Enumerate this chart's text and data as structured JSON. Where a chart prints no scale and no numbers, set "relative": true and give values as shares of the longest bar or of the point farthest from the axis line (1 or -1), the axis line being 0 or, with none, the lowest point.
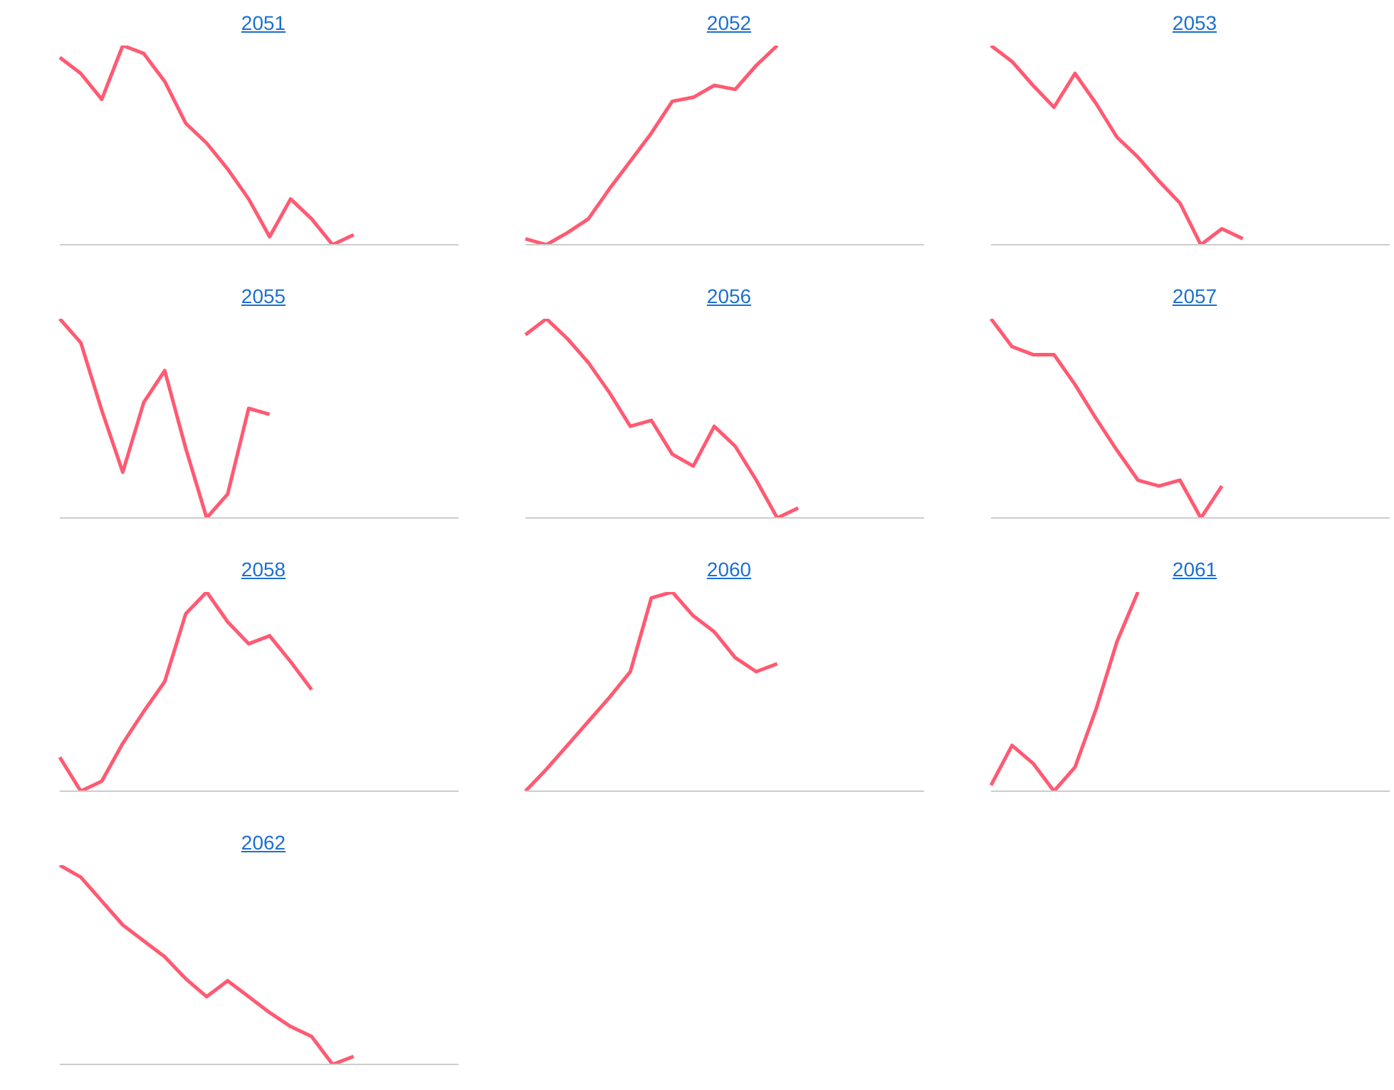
{
  "chart_data": [
    {
      "type": "line",
      "title": "2051",
      "relative": true,
      "color": "#ff5a72",
      "categories": [
        null,
        null,
        null,
        null,
        null,
        null,
        null,
        null,
        null,
        null,
        null,
        null,
        null,
        null,
        null,
        null,
        null,
        null,
        null,
        null
      ],
      "values": [
        0.94,
        0.86,
        0.73,
        1.0,
        0.96,
        0.82,
        0.61,
        0.51,
        0.38,
        0.23,
        0.04,
        0.23,
        0.13,
        0,
        0.05,
        null,
        null,
        null,
        null,
        null
      ]
    },
    {
      "type": "line",
      "title": "2052",
      "relative": true,
      "color": "#ff5a72",
      "categories": [
        null,
        null,
        null,
        null,
        null,
        null,
        null,
        null,
        null,
        null,
        null,
        null,
        null,
        null,
        null,
        null,
        null,
        null,
        null,
        null
      ],
      "values": [
        0.03,
        0,
        0.06,
        0.13,
        0.28,
        0.42,
        0.56,
        0.72,
        0.74,
        0.8,
        0.78,
        0.9,
        1.0,
        null,
        null,
        null,
        null,
        null,
        null,
        null
      ]
    },
    {
      "type": "line",
      "title": "2053",
      "relative": true,
      "color": "#ff5a72",
      "categories": [
        null,
        null,
        null,
        null,
        null,
        null,
        null,
        null,
        null,
        null,
        null,
        null,
        null,
        null,
        null,
        null,
        null,
        null,
        null,
        null
      ],
      "values": [
        1.0,
        0.92,
        0.8,
        0.69,
        0.86,
        0.71,
        0.54,
        0.44,
        0.32,
        0.21,
        0,
        0.08,
        0.03,
        null,
        null,
        null,
        null,
        null,
        null,
        null
      ]
    },
    {
      "type": "line",
      "title": "2055",
      "relative": true,
      "color": "#ff5a72",
      "categories": [
        null,
        null,
        null,
        null,
        null,
        null,
        null,
        null,
        null,
        null,
        null,
        null,
        null,
        null,
        null,
        null,
        null,
        null,
        null,
        null
      ],
      "values": [
        1.0,
        0.88,
        0.54,
        0.23,
        0.58,
        0.74,
        0.35,
        0,
        0.12,
        0.55,
        0.52,
        null,
        null,
        null,
        null,
        null,
        null,
        null,
        null,
        null
      ]
    },
    {
      "type": "line",
      "title": "2056",
      "relative": true,
      "color": "#ff5a72",
      "categories": [
        null,
        null,
        null,
        null,
        null,
        null,
        null,
        null,
        null,
        null,
        null,
        null,
        null,
        null,
        null,
        null,
        null,
        null,
        null,
        null
      ],
      "values": [
        0.92,
        1.0,
        0.9,
        0.78,
        0.63,
        0.46,
        0.49,
        0.32,
        0.26,
        0.46,
        0.36,
        0.19,
        0,
        0.05,
        null,
        null,
        null,
        null,
        null,
        null
      ]
    },
    {
      "type": "line",
      "title": "2057",
      "relative": true,
      "color": "#ff5a72",
      "categories": [
        null,
        null,
        null,
        null,
        null,
        null,
        null,
        null,
        null,
        null,
        null,
        null,
        null,
        null,
        null,
        null,
        null,
        null,
        null,
        null
      ],
      "values": [
        1.0,
        0.86,
        0.82,
        0.82,
        0.67,
        0.5,
        0.34,
        0.19,
        0.16,
        0.19,
        0,
        0.16,
        null,
        null,
        null,
        null,
        null,
        null,
        null,
        null
      ]
    },
    {
      "type": "line",
      "title": "2058",
      "relative": true,
      "color": "#ff5a72",
      "categories": [
        null,
        null,
        null,
        null,
        null,
        null,
        null,
        null,
        null,
        null,
        null,
        null,
        null,
        null,
        null,
        null,
        null,
        null,
        null,
        null
      ],
      "values": [
        0.17,
        0,
        0.05,
        0.24,
        0.4,
        0.55,
        0.89,
        1.0,
        0.85,
        0.74,
        0.78,
        0.65,
        0.51,
        null,
        null,
        null,
        null,
        null,
        null,
        null
      ]
    },
    {
      "type": "line",
      "title": "2060",
      "relative": true,
      "color": "#ff5a72",
      "categories": [
        null,
        null,
        null,
        null,
        null,
        null,
        null,
        null,
        null,
        null,
        null,
        null,
        null,
        null,
        null,
        null,
        null,
        null,
        null,
        null
      ],
      "values": [
        0,
        0.11,
        0.23,
        0.35,
        0.47,
        0.6,
        0.97,
        1.0,
        0.88,
        0.8,
        0.67,
        0.6,
        0.64,
        null,
        null,
        null,
        null,
        null,
        null,
        null
      ]
    },
    {
      "type": "line",
      "title": "2061",
      "relative": true,
      "color": "#ff5a72",
      "categories": [
        null,
        null,
        null,
        null,
        null,
        null,
        null,
        null,
        null,
        null,
        null,
        null,
        null,
        null,
        null,
        null,
        null,
        null,
        null,
        null
      ],
      "values": [
        0.03,
        0.23,
        0.14,
        0,
        0.12,
        0.41,
        0.75,
        1.0,
        null,
        null,
        null,
        null,
        null,
        null,
        null,
        null,
        null,
        null,
        null,
        null
      ]
    },
    {
      "type": "line",
      "title": "2062",
      "relative": true,
      "color": "#ff5a72",
      "categories": [
        null,
        null,
        null,
        null,
        null,
        null,
        null,
        null,
        null,
        null,
        null,
        null,
        null,
        null,
        null,
        null,
        null,
        null,
        null,
        null
      ],
      "values": [
        1.0,
        0.94,
        0.82,
        0.7,
        0.62,
        0.54,
        0.43,
        0.34,
        0.42,
        0.34,
        0.26,
        0.19,
        0.14,
        0,
        0.04,
        null,
        null,
        null,
        null,
        null
      ]
    }
  ]
}
